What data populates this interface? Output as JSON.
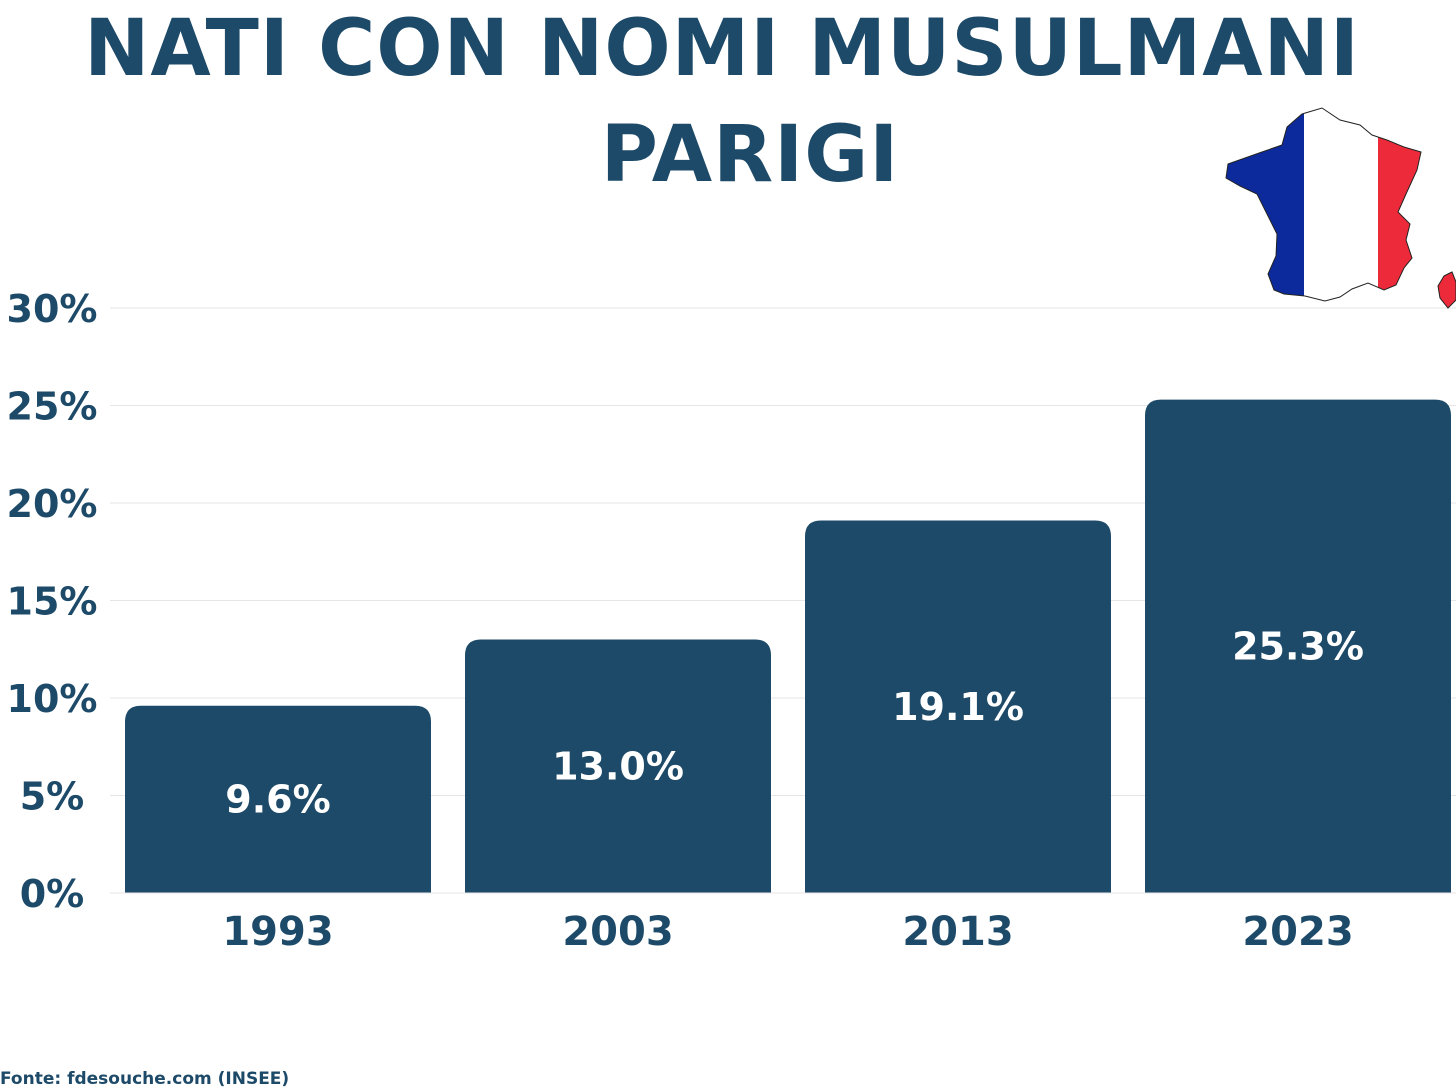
{
  "chart_data": {
    "type": "bar",
    "title": "NATI CON NOMI MUSULMANI",
    "subtitle": "PARIGI",
    "categories": [
      "1993",
      "2003",
      "2013",
      "2023"
    ],
    "values": [
      9.6,
      13.0,
      19.1,
      25.3
    ],
    "data_labels": [
      "9.6%",
      "13.0%",
      "19.1%",
      "25.3%"
    ],
    "ylim": [
      0,
      30
    ],
    "yticks": [
      0,
      5,
      10,
      15,
      20,
      25,
      30
    ],
    "ytick_labels": [
      "0%",
      "5%",
      "10%",
      "15%",
      "20%",
      "25%",
      "30%"
    ],
    "xlabel": "",
    "ylabel": "",
    "grid": true,
    "legend": "none"
  },
  "source": "Fonte: fdesouche.com (INSEE)",
  "colors": {
    "bar": "#1d4a68",
    "text": "#1d4a68",
    "bar_label": "#ffffff",
    "grid": "#e6e6e6",
    "flag_blue": "#0d2a9c",
    "flag_white": "#ffffff",
    "flag_red": "#ec2a3a"
  },
  "icons": {
    "map": "france-flag-map-icon"
  }
}
